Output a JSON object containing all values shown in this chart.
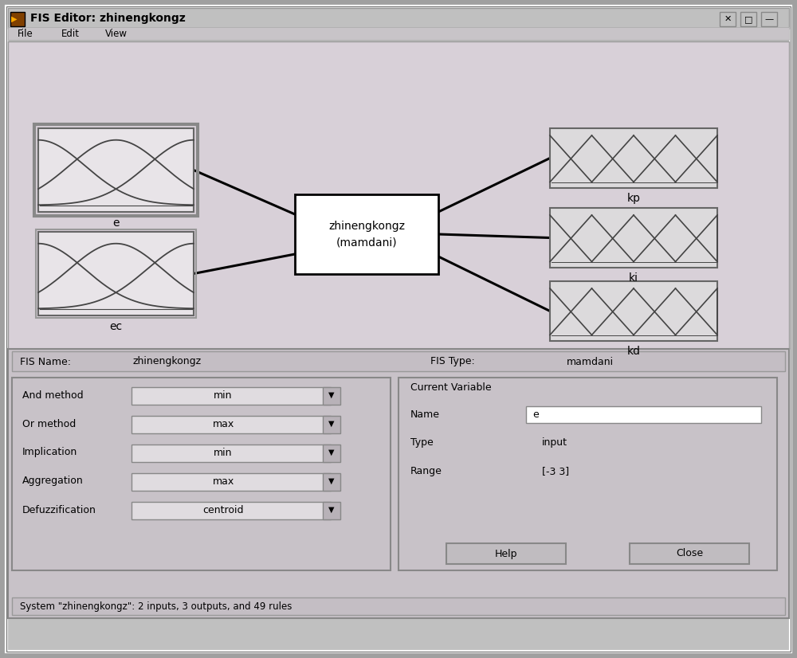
{
  "title_bar": "FIS Editor: zhinengkongz",
  "menu_items": [
    "File",
    "Edit",
    "View"
  ],
  "fis_name": "zhinengkongz",
  "fis_type": "mamdani",
  "center_label_line1": "zhinengkongz",
  "center_label_line2": "(mamdani)",
  "and_method": "min",
  "or_method": "max",
  "implication": "min",
  "aggregation": "max",
  "defuzzification": "centroid",
  "cv_name": "e",
  "cv_type": "input",
  "cv_range": "[-3 3]",
  "status_text": "System \"zhinengkongz\": 2 inputs, 3 outputs, and 49 rules",
  "win_bg": "#c0c0c0",
  "titlebar_bg": "#c0c0c0",
  "dialog_bg": "#d4cdd4",
  "panel_bg": "#c8c2c8",
  "mf_box_bg": "#e8e4e8",
  "mf_box_bg2": "#dcdadc",
  "white": "#ffffff",
  "btn_bg": "#c8c2c8",
  "dropdown_bg": "#e0dce0"
}
